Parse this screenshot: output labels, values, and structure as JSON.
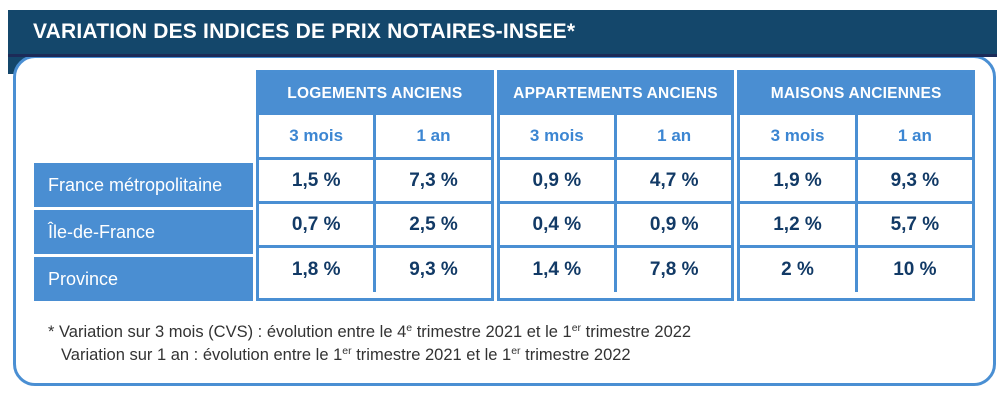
{
  "title": "VARIATION DES INDICES DE PRIX NOTAIRES-INSEE*",
  "table": {
    "groups": [
      {
        "label": "LOGEMENTS ANCIENS"
      },
      {
        "label": "APPARTEMENTS ANCIENS"
      },
      {
        "label": "MAISONS ANCIENNES"
      }
    ],
    "periods": [
      "3 mois",
      "1 an"
    ],
    "rows": [
      {
        "label": "France métropolitaine",
        "values": [
          "1,5 %",
          "7,3 %",
          "0,9 %",
          "4,7 %",
          "1,9 %",
          "9,3 %"
        ]
      },
      {
        "label": "Île-de-France",
        "values": [
          "0,7 %",
          "2,5 %",
          "0,4 %",
          "0,9 %",
          "1,2 %",
          "5,7 %"
        ]
      },
      {
        "label": "Province",
        "values": [
          "1,8 %",
          "9,3 %",
          "1,4 %",
          "7,8 %",
          "2 %",
          "10 %"
        ]
      }
    ]
  },
  "footnote": {
    "line1": {
      "pre": "* Variation sur 3 mois (CVS) : évolution entre le 4",
      "sup1": "e",
      "mid": " trimestre 2021 et le 1",
      "sup2": "er",
      "post": " trimestre 2022"
    },
    "line2": {
      "pre": "Variation sur 1 an : évolution entre le 1",
      "sup1": "er",
      "mid": " trimestre 2021 et le 1",
      "sup2": "er",
      "post": " trimestre 2022"
    }
  },
  "colors": {
    "navy_bar": "#14476b",
    "navy_bar_accent": "#1c2b58",
    "blue_accent": "#4a8ed2",
    "value_text": "#123a66",
    "footnote_text": "#333333"
  },
  "chart_data": {
    "type": "table",
    "title": "VARIATION DES INDICES DE PRIX NOTAIRES-INSEE*",
    "column_groups": [
      "LOGEMENTS ANCIENS",
      "APPARTEMENTS ANCIENS",
      "MAISONS ANCIENNES"
    ],
    "sub_columns": [
      "3 mois",
      "1 an"
    ],
    "row_labels": [
      "France métropolitaine",
      "Île-de-France",
      "Province"
    ],
    "values_pct": [
      [
        1.5,
        7.3,
        0.9,
        4.7,
        1.9,
        9.3
      ],
      [
        0.7,
        2.5,
        0.4,
        0.9,
        1.2,
        5.7
      ],
      [
        1.8,
        9.3,
        1.4,
        7.8,
        2.0,
        10.0
      ]
    ],
    "footnote_lines": [
      "* Variation sur 3 mois (CVS) : évolution entre le 4e trimestre 2021 et le 1er trimestre 2022",
      "Variation sur 1 an : évolution entre le 1er trimestre 2021 et le 1er trimestre 2022"
    ]
  }
}
